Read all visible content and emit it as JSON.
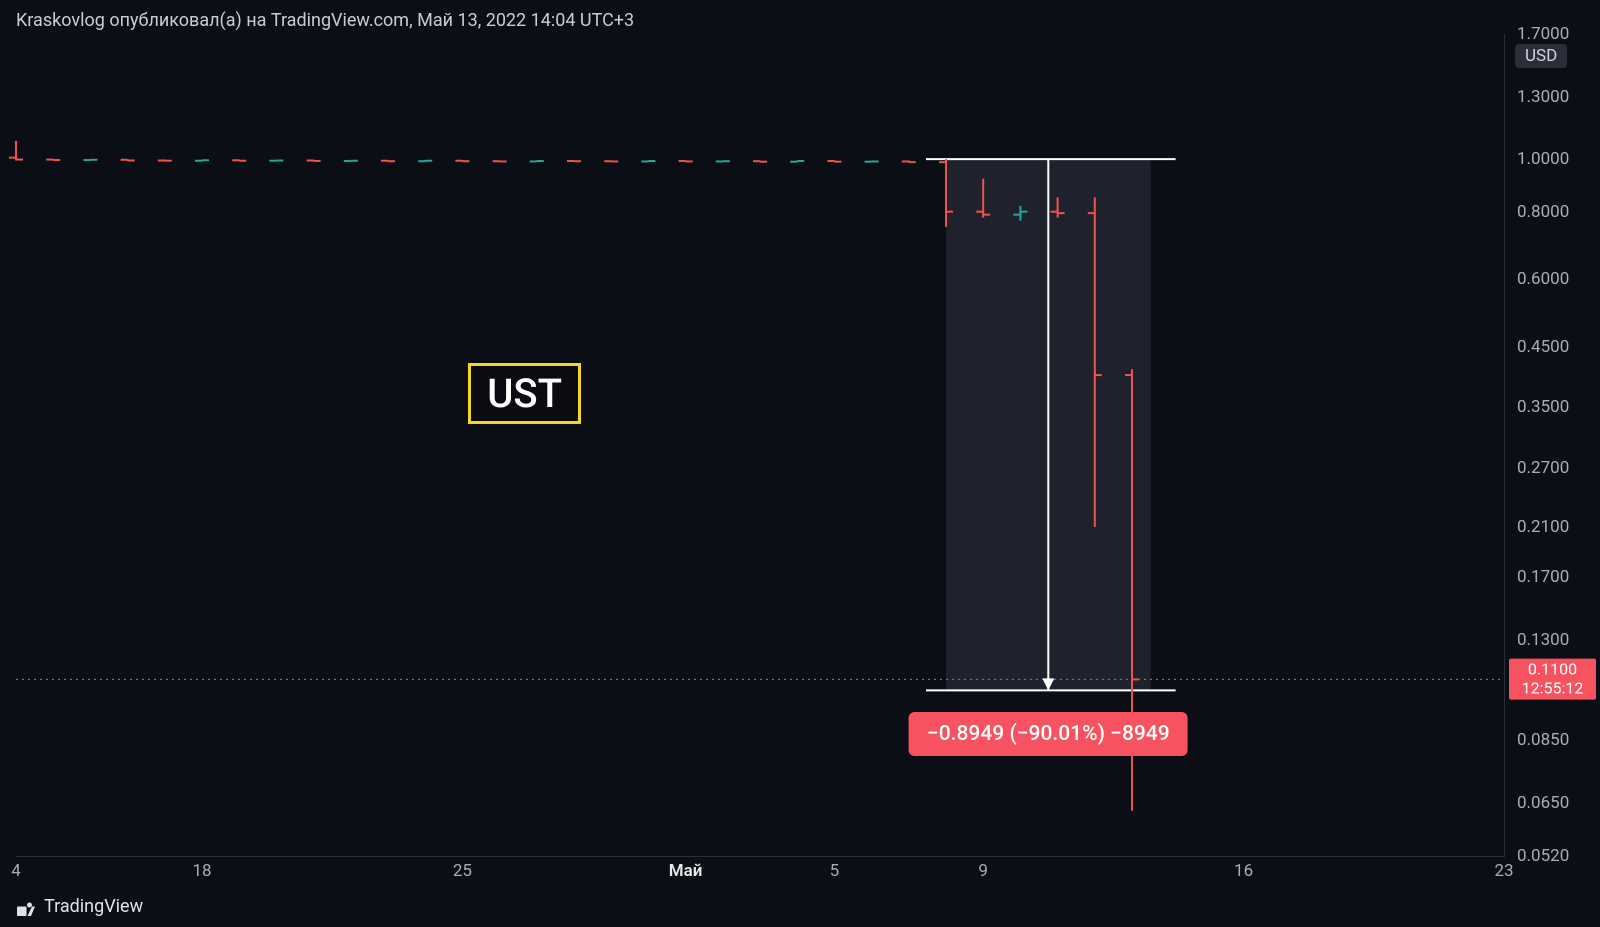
{
  "header": {
    "text": "Kraskovlog опубликовал(а) на TradingView.com, Май 13, 2022 14:04 UTC+3"
  },
  "footer": {
    "brand": "TradingView"
  },
  "chart": {
    "type": "ohlc",
    "background_color": "#0c0e15",
    "grid_color": "#2a2e39",
    "text_color": "#a8adb8",
    "y_scale": "log",
    "y_ticks": [
      {
        "label": "1.7000",
        "value": 1.7
      },
      {
        "label": "1.3000",
        "value": 1.3
      },
      {
        "label": "1.0000",
        "value": 1.0
      },
      {
        "label": "0.8000",
        "value": 0.8
      },
      {
        "label": "0.6000",
        "value": 0.6
      },
      {
        "label": "0.4500",
        "value": 0.45
      },
      {
        "label": "0.3500",
        "value": 0.35
      },
      {
        "label": "0.2700",
        "value": 0.27
      },
      {
        "label": "0.2100",
        "value": 0.21
      },
      {
        "label": "0.1700",
        "value": 0.17
      },
      {
        "label": "0.1300",
        "value": 0.13
      },
      {
        "label": "0.0850",
        "value": 0.085
      },
      {
        "label": "0.0650",
        "value": 0.065
      },
      {
        "label": "0.0520",
        "value": 0.052
      }
    ],
    "currency_label": "USD",
    "currency_y": 1.55,
    "price_line": {
      "value": 0.11,
      "label_price": "0.1100",
      "label_time": "12:55:12",
      "color": "#f7525f"
    },
    "x_range_days": {
      "start": 0,
      "end": 40
    },
    "x_ticks": [
      {
        "label": "4",
        "day": 0,
        "bold": false
      },
      {
        "label": "18",
        "day": 5,
        "bold": false
      },
      {
        "label": "25",
        "day": 12,
        "bold": false
      },
      {
        "label": "Май",
        "day": 18,
        "bold": true
      },
      {
        "label": "5",
        "day": 22,
        "bold": false
      },
      {
        "label": "9",
        "day": 26,
        "bold": false
      },
      {
        "label": "16",
        "day": 33,
        "bold": false
      },
      {
        "label": "23",
        "day": 40,
        "bold": false
      }
    ],
    "colors": {
      "up": "#26a69a",
      "down": "#ef5350",
      "tick": "#e8e8e8"
    },
    "bars": [
      {
        "day": 0,
        "o": 1.006,
        "h": 1.08,
        "l": 0.994,
        "c": 0.998,
        "dir": "down"
      },
      {
        "day": 1,
        "o": 0.998,
        "h": 1.0,
        "l": 0.995,
        "c": 0.996,
        "dir": "down"
      },
      {
        "day": 2,
        "o": 0.996,
        "h": 0.999,
        "l": 0.994,
        "c": 0.997,
        "dir": "up"
      },
      {
        "day": 3,
        "o": 0.997,
        "h": 1.0,
        "l": 0.993,
        "c": 0.994,
        "dir": "down"
      },
      {
        "day": 4,
        "o": 0.994,
        "h": 0.998,
        "l": 0.992,
        "c": 0.993,
        "dir": "down"
      },
      {
        "day": 5,
        "o": 0.993,
        "h": 0.997,
        "l": 0.991,
        "c": 0.995,
        "dir": "up"
      },
      {
        "day": 6,
        "o": 0.995,
        "h": 0.998,
        "l": 0.992,
        "c": 0.993,
        "dir": "down"
      },
      {
        "day": 7,
        "o": 0.993,
        "h": 0.996,
        "l": 0.991,
        "c": 0.994,
        "dir": "up"
      },
      {
        "day": 8,
        "o": 0.994,
        "h": 0.997,
        "l": 0.991,
        "c": 0.992,
        "dir": "down"
      },
      {
        "day": 9,
        "o": 0.992,
        "h": 0.995,
        "l": 0.99,
        "c": 0.993,
        "dir": "up"
      },
      {
        "day": 10,
        "o": 0.993,
        "h": 0.996,
        "l": 0.99,
        "c": 0.991,
        "dir": "down"
      },
      {
        "day": 11,
        "o": 0.991,
        "h": 0.995,
        "l": 0.989,
        "c": 0.993,
        "dir": "up"
      },
      {
        "day": 12,
        "o": 0.993,
        "h": 0.996,
        "l": 0.99,
        "c": 0.991,
        "dir": "down"
      },
      {
        "day": 13,
        "o": 0.991,
        "h": 0.994,
        "l": 0.989,
        "c": 0.99,
        "dir": "down"
      },
      {
        "day": 14,
        "o": 0.99,
        "h": 0.994,
        "l": 0.988,
        "c": 0.992,
        "dir": "up"
      },
      {
        "day": 15,
        "o": 0.992,
        "h": 0.995,
        "l": 0.99,
        "c": 0.991,
        "dir": "down"
      },
      {
        "day": 16,
        "o": 0.991,
        "h": 0.994,
        "l": 0.989,
        "c": 0.99,
        "dir": "down"
      },
      {
        "day": 17,
        "o": 0.99,
        "h": 0.994,
        "l": 0.988,
        "c": 0.992,
        "dir": "up"
      },
      {
        "day": 18,
        "o": 0.992,
        "h": 0.995,
        "l": 0.989,
        "c": 0.99,
        "dir": "down"
      },
      {
        "day": 19,
        "o": 0.99,
        "h": 0.994,
        "l": 0.988,
        "c": 0.991,
        "dir": "up"
      },
      {
        "day": 20,
        "o": 0.991,
        "h": 0.994,
        "l": 0.988,
        "c": 0.989,
        "dir": "down"
      },
      {
        "day": 21,
        "o": 0.989,
        "h": 0.994,
        "l": 0.987,
        "c": 0.992,
        "dir": "up"
      },
      {
        "day": 22,
        "o": 0.992,
        "h": 0.995,
        "l": 0.988,
        "c": 0.989,
        "dir": "down"
      },
      {
        "day": 23,
        "o": 0.989,
        "h": 0.993,
        "l": 0.987,
        "c": 0.99,
        "dir": "up"
      },
      {
        "day": 24,
        "o": 0.99,
        "h": 0.994,
        "l": 0.986,
        "c": 0.987,
        "dir": "down"
      },
      {
        "day": 25,
        "o": 0.987,
        "h": 1.0,
        "l": 0.75,
        "c": 0.8,
        "dir": "down"
      },
      {
        "day": 26,
        "o": 0.8,
        "h": 0.92,
        "l": 0.78,
        "c": 0.79,
        "dir": "down"
      },
      {
        "day": 27,
        "o": 0.79,
        "h": 0.82,
        "l": 0.77,
        "c": 0.8,
        "dir": "up"
      },
      {
        "day": 28,
        "o": 0.8,
        "h": 0.85,
        "l": 0.78,
        "c": 0.795,
        "dir": "down"
      },
      {
        "day": 29,
        "o": 0.795,
        "h": 0.85,
        "l": 0.21,
        "c": 0.4,
        "dir": "down"
      },
      {
        "day": 30,
        "o": 0.4,
        "h": 0.41,
        "l": 0.063,
        "c": 0.11,
        "dir": "down"
      }
    ],
    "measure_box": {
      "from_day": 25,
      "to_day": 30.5,
      "from_value": 1.0,
      "to_value": 0.105,
      "fill": "rgba(120,130,150,0.18)",
      "line_color": "#ffffff",
      "label": "−0.8949 (−90.01%) −8949"
    },
    "symbol_box": {
      "text": "UST",
      "x_day": 13.5,
      "y_value": 0.37,
      "border_color": "#f1d923"
    }
  }
}
